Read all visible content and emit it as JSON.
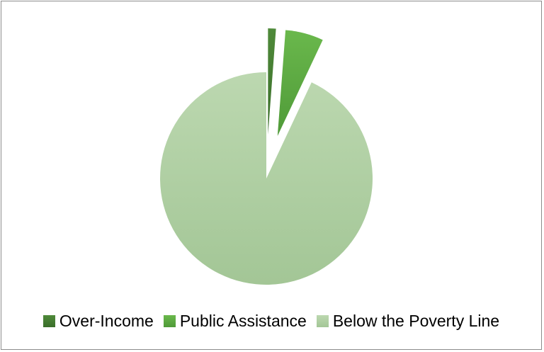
{
  "chart_data": {
    "type": "pie",
    "title": "",
    "legend_position": "bottom",
    "exploded": true,
    "slices": [
      {
        "label": "Over-Income",
        "value": 1.2,
        "color": "#4f8a3a",
        "gradient_end": "#3a6e2a"
      },
      {
        "label": "Public Assistance",
        "value": 5.8,
        "color": "#6ab84c",
        "gradient_end": "#4f9a38"
      },
      {
        "label": "Below the Poverty Line",
        "value": 93.0,
        "color": "#bcd8b0",
        "gradient_end": "#a3c696"
      }
    ]
  }
}
